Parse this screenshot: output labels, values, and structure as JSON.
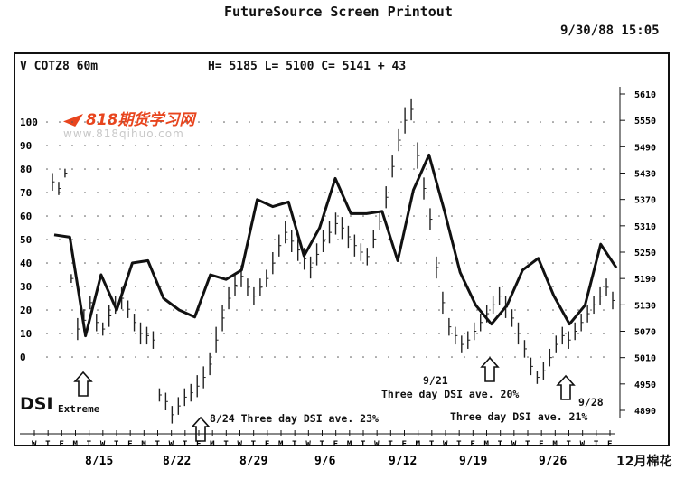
{
  "header": {
    "title": "FutureSource Screen Printout",
    "timestamp": "9/30/88   15:05"
  },
  "quote": {
    "symbol": "V  COTZ8 60m",
    "ohlc": "H= 5185 L= 5100 C= 5141   + 43"
  },
  "watermark": {
    "logo": "818期货学习网",
    "url": "www.818qihuo.com"
  },
  "labels": {
    "dsi": "DSI",
    "extreme": "Extreme",
    "ann_824": "8/24 Three day DSI ave. 23%",
    "ann_921_date": "9/21",
    "ann_921": "Three day DSI ave. 20%",
    "ann_928_date": "9/28",
    "ann_928": "Three day DSI ave. 21%",
    "cotton": "12月棉花"
  },
  "chart_data": {
    "type": "line",
    "left_axis": {
      "ticks": [
        "100",
        "90",
        "80",
        "70",
        "60",
        "50",
        "40",
        "30",
        "20",
        "10",
        "0"
      ],
      "range": [
        0,
        100
      ]
    },
    "right_axis": {
      "ticks": [
        "5610",
        "5550",
        "5490",
        "5430",
        "5370",
        "5310",
        "5250",
        "5190",
        "5130",
        "5070",
        "5010",
        "4950",
        "4890"
      ],
      "range": [
        4890,
        5610
      ]
    },
    "x_date_labels": [
      "8/15",
      "8/22",
      "8/29",
      "9/6",
      "9/12",
      "9/19",
      "9/26"
    ],
    "day_letters": [
      "W",
      "T",
      "F",
      "M",
      "T",
      "W",
      "T",
      "F",
      "M",
      "T",
      "W",
      "T",
      "F",
      "M",
      "T",
      "W",
      "T",
      "F",
      "M",
      "T",
      "W",
      "T",
      "F",
      "M",
      "T",
      "W",
      "T",
      "F",
      "M",
      "T",
      "W",
      "T",
      "F",
      "M",
      "T",
      "W",
      "T",
      "F",
      "M",
      "T",
      "W",
      "T",
      "F"
    ],
    "series": [
      {
        "name": "DSI",
        "values": [
          52,
          51,
          9,
          35,
          20,
          40,
          41,
          25,
          20,
          17,
          35,
          33,
          37,
          67,
          64,
          66,
          43,
          55,
          76,
          61,
          61,
          62,
          41,
          71,
          86,
          62,
          36,
          22,
          14,
          22,
          37,
          42,
          26,
          14,
          22,
          48,
          38
        ]
      },
      {
        "name": "",
        "price_bars": [
          [
            5430,
            5390
          ],
          [
            5410,
            5380
          ],
          [
            5440,
            5420
          ],
          [
            5200,
            5180
          ],
          [
            5100,
            5050
          ],
          [
            5120,
            5070
          ],
          [
            5150,
            5120
          ],
          [
            5110,
            5070
          ],
          [
            5090,
            5060
          ],
          [
            5130,
            5080
          ],
          [
            5150,
            5110
          ],
          [
            5170,
            5120
          ],
          [
            5140,
            5100
          ],
          [
            5110,
            5070
          ],
          [
            5090,
            5040
          ],
          [
            5080,
            5040
          ],
          [
            5070,
            5030
          ],
          [
            4940,
            4910
          ],
          [
            4930,
            4890
          ],
          [
            4900,
            4860
          ],
          [
            4920,
            4880
          ],
          [
            4940,
            4900
          ],
          [
            4950,
            4910
          ],
          [
            4970,
            4920
          ],
          [
            4990,
            4940
          ],
          [
            5020,
            4970
          ],
          [
            5080,
            5020
          ],
          [
            5130,
            5070
          ],
          [
            5170,
            5120
          ],
          [
            5200,
            5150
          ],
          [
            5220,
            5170
          ],
          [
            5190,
            5150
          ],
          [
            5170,
            5130
          ],
          [
            5190,
            5150
          ],
          [
            5210,
            5170
          ],
          [
            5250,
            5200
          ],
          [
            5290,
            5240
          ],
          [
            5320,
            5270
          ],
          [
            5300,
            5250
          ],
          [
            5280,
            5230
          ],
          [
            5260,
            5210
          ],
          [
            5240,
            5190
          ],
          [
            5270,
            5220
          ],
          [
            5300,
            5250
          ],
          [
            5320,
            5270
          ],
          [
            5340,
            5290
          ],
          [
            5330,
            5280
          ],
          [
            5310,
            5260
          ],
          [
            5290,
            5240
          ],
          [
            5270,
            5230
          ],
          [
            5260,
            5220
          ],
          [
            5300,
            5260
          ],
          [
            5340,
            5300
          ],
          [
            5400,
            5350
          ],
          [
            5470,
            5420
          ],
          [
            5530,
            5480
          ],
          [
            5580,
            5520
          ],
          [
            5600,
            5550
          ],
          [
            5500,
            5440
          ],
          [
            5420,
            5370
          ],
          [
            5350,
            5300
          ],
          [
            5240,
            5190
          ],
          [
            5160,
            5110
          ],
          [
            5100,
            5060
          ],
          [
            5080,
            5040
          ],
          [
            5060,
            5020
          ],
          [
            5070,
            5030
          ],
          [
            5090,
            5050
          ],
          [
            5110,
            5070
          ],
          [
            5130,
            5090
          ],
          [
            5150,
            5110
          ],
          [
            5170,
            5130
          ],
          [
            5150,
            5100
          ],
          [
            5120,
            5080
          ],
          [
            5090,
            5040
          ],
          [
            5050,
            5010
          ],
          [
            5010,
            4970
          ],
          [
            4980,
            4950
          ],
          [
            5000,
            4960
          ],
          [
            5030,
            4990
          ],
          [
            5060,
            5020
          ],
          [
            5080,
            5040
          ],
          [
            5070,
            5030
          ],
          [
            5090,
            5050
          ],
          [
            5110,
            5070
          ],
          [
            5130,
            5090
          ],
          [
            5150,
            5110
          ],
          [
            5170,
            5130
          ],
          [
            5190,
            5150
          ],
          [
            5160,
            5120
          ]
        ]
      }
    ]
  }
}
